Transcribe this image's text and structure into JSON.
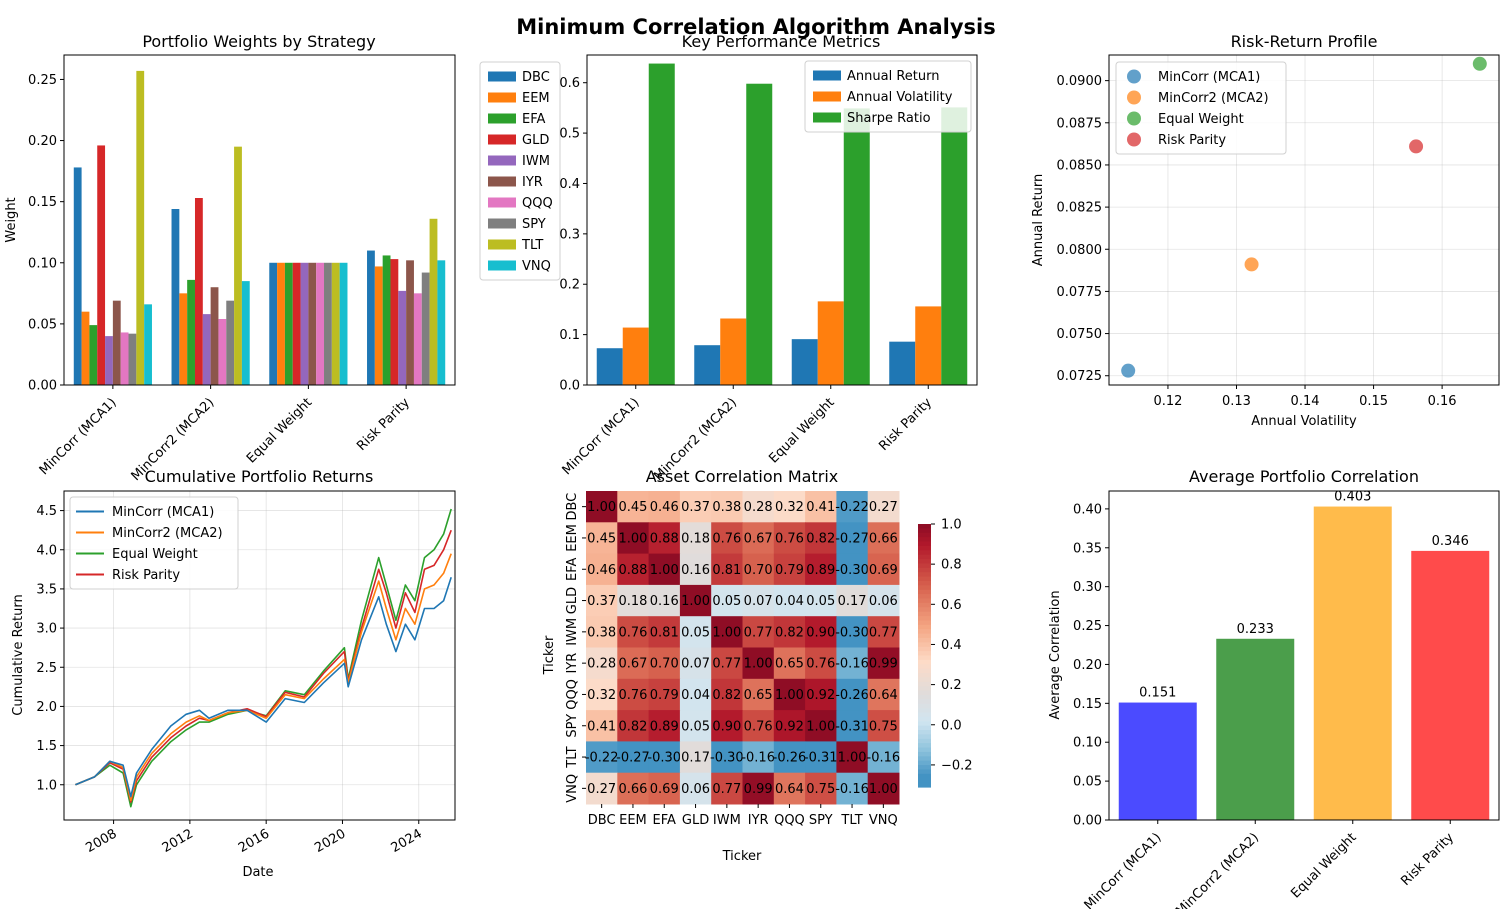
{
  "figure": {
    "suptitle": "Minimum Correlation Algorithm Analysis"
  },
  "colors": {
    "tab10": [
      "#1f77b4",
      "#ff7f0e",
      "#2ca02c",
      "#d62728",
      "#9467bd",
      "#8c564b",
      "#e377c2",
      "#7f7f7f",
      "#bcbd22",
      "#17becf"
    ],
    "avg_bars": [
      "#4b4bff",
      "#4b9e4b",
      "#ffbb4b",
      "#ff4b4b"
    ]
  },
  "chart_data": [
    {
      "id": "weights",
      "type": "bar",
      "title": "Portfolio Weights by Strategy",
      "xlabel": "",
      "ylabel": "Weight",
      "categories": [
        "MinCorr (MCA1)",
        "MinCorr2 (MCA2)",
        "Equal Weight",
        "Risk Parity"
      ],
      "ylim": [
        0,
        0.27
      ],
      "yticks": [
        "0.00",
        "0.05",
        "0.10",
        "0.15",
        "0.20",
        "0.25"
      ],
      "legend_position": "outside-right",
      "series": [
        {
          "name": "DBC",
          "values": [
            0.178,
            0.144,
            0.1,
            0.11
          ]
        },
        {
          "name": "EEM",
          "values": [
            0.06,
            0.075,
            0.1,
            0.097
          ]
        },
        {
          "name": "EFA",
          "values": [
            0.049,
            0.086,
            0.1,
            0.106
          ]
        },
        {
          "name": "GLD",
          "values": [
            0.196,
            0.153,
            0.1,
            0.103
          ]
        },
        {
          "name": "IWM",
          "values": [
            0.04,
            0.058,
            0.1,
            0.077
          ]
        },
        {
          "name": "IYR",
          "values": [
            0.069,
            0.08,
            0.1,
            0.102
          ]
        },
        {
          "name": "QQQ",
          "values": [
            0.043,
            0.054,
            0.1,
            0.075
          ]
        },
        {
          "name": "SPY",
          "values": [
            0.042,
            0.069,
            0.1,
            0.092
          ]
        },
        {
          "name": "TLT",
          "values": [
            0.257,
            0.195,
            0.1,
            0.136
          ]
        },
        {
          "name": "VNQ",
          "values": [
            0.066,
            0.085,
            0.1,
            0.102
          ]
        }
      ]
    },
    {
      "id": "metrics",
      "type": "bar",
      "title": "Key Performance Metrics",
      "xlabel": "",
      "ylabel": "",
      "categories": [
        "MinCorr (MCA1)",
        "MinCorr2 (MCA2)",
        "Equal Weight",
        "Risk Parity"
      ],
      "ylim": [
        0,
        0.655
      ],
      "yticks": [
        "0.0",
        "0.1",
        "0.2",
        "0.3",
        "0.4",
        "0.5",
        "0.6"
      ],
      "legend_position": "upper right",
      "series": [
        {
          "name": "Annual Return",
          "values": [
            0.073,
            0.079,
            0.091,
            0.086
          ]
        },
        {
          "name": "Annual Volatility",
          "values": [
            0.114,
            0.132,
            0.166,
            0.156
          ]
        },
        {
          "name": "Sharpe Ratio",
          "values": [
            0.638,
            0.598,
            0.549,
            0.551
          ]
        }
      ]
    },
    {
      "id": "riskreturn",
      "type": "scatter",
      "title": "Risk-Return Profile",
      "xlabel": "Annual Volatility",
      "ylabel": "Annual Return",
      "xlim": [
        0.1114,
        0.1683
      ],
      "ylim": [
        0.07195,
        0.09152
      ],
      "xticks": [
        "0.12",
        "0.13",
        "0.14",
        "0.15",
        "0.16"
      ],
      "yticks": [
        "0.0725",
        "0.0750",
        "0.0775",
        "0.0800",
        "0.0825",
        "0.0850",
        "0.0875",
        "0.0900"
      ],
      "grid": true,
      "legend_position": "upper left",
      "series": [
        {
          "name": "MinCorr (MCA1)",
          "x": 0.1142,
          "y": 0.0728
        },
        {
          "name": "MinCorr2 (MCA2)",
          "x": 0.1322,
          "y": 0.0791
        },
        {
          "name": "Equal Weight",
          "x": 0.1655,
          "y": 0.091
        },
        {
          "name": "Risk Parity",
          "x": 0.1562,
          "y": 0.0861
        }
      ]
    },
    {
      "id": "cumulative",
      "type": "line",
      "title": "Cumulative Portfolio Returns",
      "xlabel": "Date",
      "ylabel": "Cumulative Return",
      "xlim": [
        2005.4,
        2025.9
      ],
      "ylim": [
        0.55,
        4.75
      ],
      "xticks": [
        "2008",
        "2012",
        "2016",
        "2020",
        "2024"
      ],
      "yticks": [
        "1.0",
        "1.5",
        "2.0",
        "2.5",
        "3.0",
        "3.5",
        "4.0",
        "4.5"
      ],
      "grid": true,
      "legend_position": "upper left",
      "x": [
        2006.0,
        2007.0,
        2007.8,
        2008.5,
        2008.9,
        2009.2,
        2010.0,
        2011.0,
        2011.8,
        2012.5,
        2013.0,
        2014.0,
        2015.0,
        2016.0,
        2017.0,
        2018.0,
        2019.0,
        2020.1,
        2020.3,
        2021.0,
        2021.9,
        2022.3,
        2022.8,
        2023.3,
        2023.8,
        2024.3,
        2024.8,
        2025.3,
        2025.7
      ],
      "series": [
        {
          "name": "MinCorr (MCA1)",
          "values": [
            1.0,
            1.1,
            1.3,
            1.25,
            0.85,
            1.15,
            1.45,
            1.75,
            1.9,
            1.95,
            1.85,
            1.95,
            1.95,
            1.8,
            2.1,
            2.05,
            2.3,
            2.55,
            2.25,
            2.85,
            3.4,
            3.05,
            2.7,
            3.05,
            2.85,
            3.25,
            3.25,
            3.35,
            3.65
          ]
        },
        {
          "name": "MinCorr2 (MCA2)",
          "values": [
            1.0,
            1.1,
            1.3,
            1.22,
            0.8,
            1.1,
            1.4,
            1.65,
            1.8,
            1.88,
            1.82,
            1.92,
            1.95,
            1.85,
            2.15,
            2.1,
            2.35,
            2.6,
            2.3,
            2.95,
            3.6,
            3.25,
            2.85,
            3.25,
            3.05,
            3.5,
            3.55,
            3.7,
            3.95
          ]
        },
        {
          "name": "Equal Weight",
          "values": [
            1.0,
            1.1,
            1.25,
            1.15,
            0.72,
            1.0,
            1.3,
            1.55,
            1.7,
            1.8,
            1.8,
            1.9,
            1.95,
            1.88,
            2.2,
            2.15,
            2.45,
            2.75,
            2.35,
            3.1,
            3.9,
            3.55,
            3.1,
            3.55,
            3.35,
            3.9,
            4.0,
            4.2,
            4.52
          ]
        },
        {
          "name": "Risk Parity",
          "values": [
            1.0,
            1.1,
            1.28,
            1.2,
            0.78,
            1.05,
            1.35,
            1.6,
            1.75,
            1.85,
            1.82,
            1.92,
            1.97,
            1.87,
            2.18,
            2.12,
            2.42,
            2.7,
            2.32,
            3.0,
            3.75,
            3.45,
            3.0,
            3.45,
            3.2,
            3.75,
            3.8,
            4.0,
            4.25
          ]
        }
      ]
    },
    {
      "id": "corrmatrix",
      "type": "heatmap",
      "title": "Asset Correlation Matrix",
      "xlabel": "Ticker",
      "ylabel": "Ticker",
      "labels": [
        "DBC",
        "EEM",
        "EFA",
        "GLD",
        "IWM",
        "IYR",
        "QQQ",
        "SPY",
        "TLT",
        "VNQ"
      ],
      "colorbar_range": [
        -0.31,
        1.0
      ],
      "colorbar_ticks": [
        "1.0",
        "0.8",
        "0.6",
        "0.4",
        "0.2",
        "0.0",
        "−0.2"
      ],
      "cell_text": [
        [
          "1.00",
          "0.45",
          "0.46",
          "0.37",
          "0.38",
          "0.28",
          "0.32",
          "0.41",
          "-0.22",
          "0.27"
        ],
        [
          "0.45",
          "1.00",
          "0.88",
          "0.18",
          "0.76",
          "0.67",
          "0.76",
          "0.82",
          "-0.27",
          "0.66"
        ],
        [
          "0.46",
          "0.88",
          "1.00",
          "0.16",
          "0.81",
          "0.70",
          "0.79",
          "0.89",
          "-0.30",
          "0.69"
        ],
        [
          "0.37",
          "0.18",
          "0.16",
          "1.00",
          "0.05",
          "0.07",
          "0.04",
          "0.05",
          "0.17",
          "0.06"
        ],
        [
          "0.38",
          "0.76",
          "0.81",
          "0.05",
          "1.00",
          "0.77",
          "0.82",
          "0.90",
          "-0.30",
          "0.77"
        ],
        [
          "0.28",
          "0.67",
          "0.70",
          "0.07",
          "0.77",
          "1.00",
          "0.65",
          "0.76",
          "-0.16",
          "0.99"
        ],
        [
          "0.32",
          "0.76",
          "0.79",
          "0.04",
          "0.82",
          "0.65",
          "1.00",
          "0.92",
          "-0.26",
          "0.64"
        ],
        [
          "0.41",
          "0.82",
          "0.89",
          "0.05",
          "0.90",
          "0.76",
          "0.92",
          "1.00",
          "-0.31",
          "0.75"
        ],
        [
          "-0.22",
          "-0.27",
          "-0.30",
          "0.17",
          "-0.30",
          "-0.16",
          "-0.26",
          "-0.31",
          "1.00",
          "-0.16"
        ],
        [
          "0.27",
          "0.66",
          "0.69",
          "0.06",
          "0.77",
          "0.99",
          "0.64",
          "0.75",
          "-0.16",
          "1.00"
        ]
      ]
    },
    {
      "id": "avgcorr",
      "type": "bar",
      "title": "Average Portfolio Correlation",
      "xlabel": "",
      "ylabel": "Average Correlation",
      "categories": [
        "MinCorr (MCA1)",
        "MinCorr2 (MCA2)",
        "Equal Weight",
        "Risk Parity"
      ],
      "values": [
        0.151,
        0.233,
        0.403,
        0.346
      ],
      "value_labels": [
        "0.151",
        "0.233",
        "0.403",
        "0.346"
      ],
      "ylim": [
        0,
        0.423
      ],
      "yticks": [
        "0.00",
        "0.05",
        "0.10",
        "0.15",
        "0.20",
        "0.25",
        "0.30",
        "0.35",
        "0.40"
      ]
    }
  ]
}
